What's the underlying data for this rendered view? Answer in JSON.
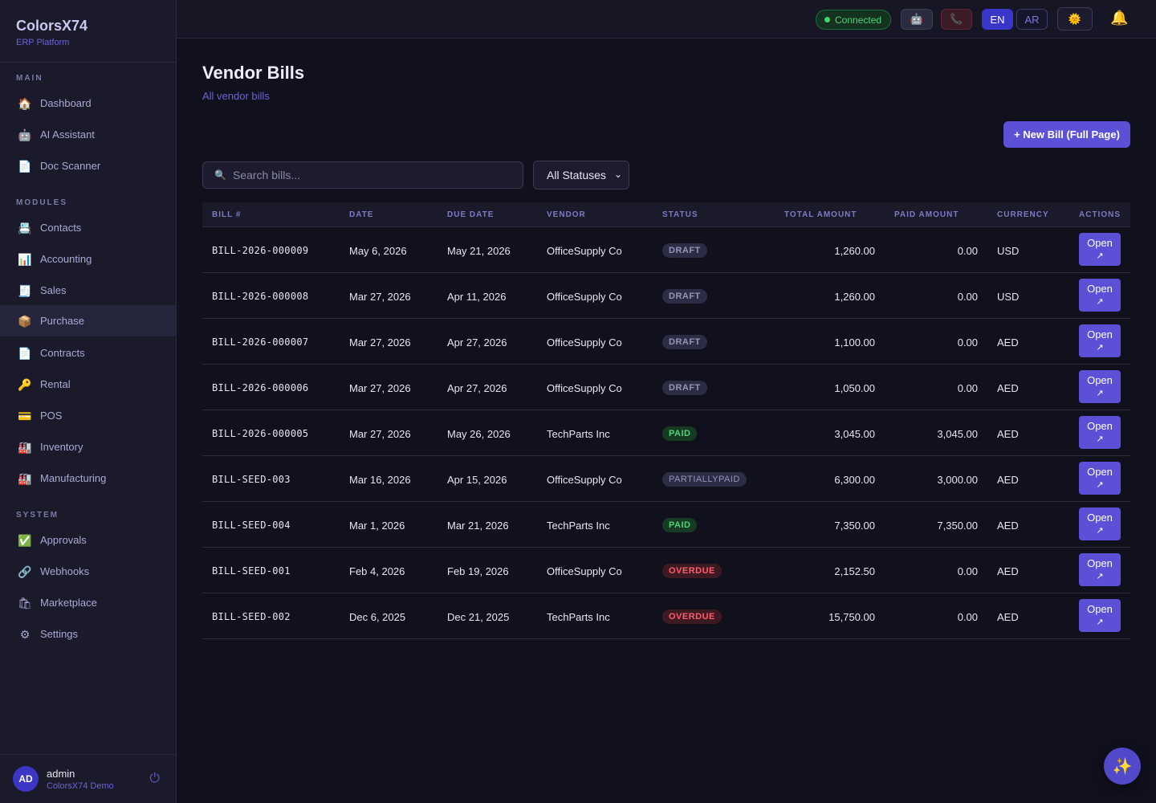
{
  "brand": {
    "name": "ColorsX74",
    "subtitle": "ERP Platform"
  },
  "sidebar": {
    "sections": [
      {
        "label": "MAIN"
      },
      {
        "label": "MODULES"
      },
      {
        "label": "SYSTEM"
      }
    ],
    "items": [
      {
        "label": "Dashboard",
        "icon": "house-icon"
      },
      {
        "label": "AI Assistant",
        "icon": "robot-icon"
      },
      {
        "label": "Doc Scanner",
        "icon": "document-icon"
      },
      {
        "label": "Contacts",
        "icon": "contacts-icon"
      },
      {
        "label": "Accounting",
        "icon": "chart-icon"
      },
      {
        "label": "Sales",
        "icon": "cash-register-icon"
      },
      {
        "label": "Purchase",
        "icon": "package-icon",
        "active": true
      },
      {
        "label": "Contracts",
        "icon": "document-icon"
      },
      {
        "label": "Rental",
        "icon": "key-icon"
      },
      {
        "label": "POS",
        "icon": "card-icon"
      },
      {
        "label": "Inventory",
        "icon": "factory-icon"
      },
      {
        "label": "Manufacturing",
        "icon": "factory-icon"
      },
      {
        "label": "Approvals",
        "icon": "check-icon"
      },
      {
        "label": "Webhooks",
        "icon": "link-icon"
      },
      {
        "label": "Marketplace",
        "icon": "shopping-bag-icon"
      },
      {
        "label": "Settings",
        "icon": "gear-icon"
      }
    ]
  },
  "user": {
    "initials": "AD",
    "name": "admin",
    "org": "ColorsX74 Demo"
  },
  "topbar": {
    "connection": "Connected",
    "lang_en": "EN",
    "lang_ar": "AR"
  },
  "page": {
    "title": "Vendor Bills",
    "subtitle": "All vendor bills",
    "new_button": "+ New Bill (Full Page)",
    "search_placeholder": "Search bills...",
    "status_filter": "All Statuses"
  },
  "table": {
    "headers": [
      "BILL #",
      "DATE",
      "DUE DATE",
      "VENDOR",
      "STATUS",
      "TOTAL AMOUNT",
      "PAID AMOUNT",
      "CURRENCY",
      "ACTIONS"
    ],
    "open_label": "Open",
    "rows": [
      {
        "bill": "BILL-2026-000009",
        "date": "May 6, 2026",
        "due": "May 21, 2026",
        "vendor": "OfficeSupply Co",
        "status": "DRAFT",
        "status_type": "draft",
        "total": "1,260.00",
        "paid": "0.00",
        "currency": "USD"
      },
      {
        "bill": "BILL-2026-000008",
        "date": "Mar 27, 2026",
        "due": "Apr 11, 2026",
        "vendor": "OfficeSupply Co",
        "status": "DRAFT",
        "status_type": "draft",
        "total": "1,260.00",
        "paid": "0.00",
        "currency": "USD"
      },
      {
        "bill": "BILL-2026-000007",
        "date": "Mar 27, 2026",
        "due": "Apr 27, 2026",
        "vendor": "OfficeSupply Co",
        "status": "DRAFT",
        "status_type": "draft",
        "total": "1,100.00",
        "paid": "0.00",
        "currency": "AED"
      },
      {
        "bill": "BILL-2026-000006",
        "date": "Mar 27, 2026",
        "due": "Apr 27, 2026",
        "vendor": "OfficeSupply Co",
        "status": "DRAFT",
        "status_type": "draft",
        "total": "1,050.00",
        "paid": "0.00",
        "currency": "AED"
      },
      {
        "bill": "BILL-2026-000005",
        "date": "Mar 27, 2026",
        "due": "May 26, 2026",
        "vendor": "TechParts Inc",
        "status": "PAID",
        "status_type": "paid",
        "total": "3,045.00",
        "paid": "3,045.00",
        "currency": "AED"
      },
      {
        "bill": "BILL-SEED-003",
        "date": "Mar 16, 2026",
        "due": "Apr 15, 2026",
        "vendor": "OfficeSupply Co",
        "status": "PARTIALLYPAID",
        "status_type": "partiallypaid",
        "total": "6,300.00",
        "paid": "3,000.00",
        "currency": "AED"
      },
      {
        "bill": "BILL-SEED-004",
        "date": "Mar 1, 2026",
        "due": "Mar 21, 2026",
        "vendor": "TechParts Inc",
        "status": "PAID",
        "status_type": "paid",
        "total": "7,350.00",
        "paid": "7,350.00",
        "currency": "AED"
      },
      {
        "bill": "BILL-SEED-001",
        "date": "Feb 4, 2026",
        "due": "Feb 19, 2026",
        "vendor": "OfficeSupply Co",
        "status": "OVERDUE",
        "status_type": "overdue",
        "total": "2,152.50",
        "paid": "0.00",
        "currency": "AED"
      },
      {
        "bill": "BILL-SEED-002",
        "date": "Dec 6, 2025",
        "due": "Dec 21, 2025",
        "vendor": "TechParts Inc",
        "status": "OVERDUE",
        "status_type": "overdue",
        "total": "15,750.00",
        "paid": "0.00",
        "currency": "AED"
      }
    ]
  },
  "colors": {
    "accent": "#5b50d6",
    "background": "#11111e",
    "sidebar": "#1a1a2b"
  }
}
